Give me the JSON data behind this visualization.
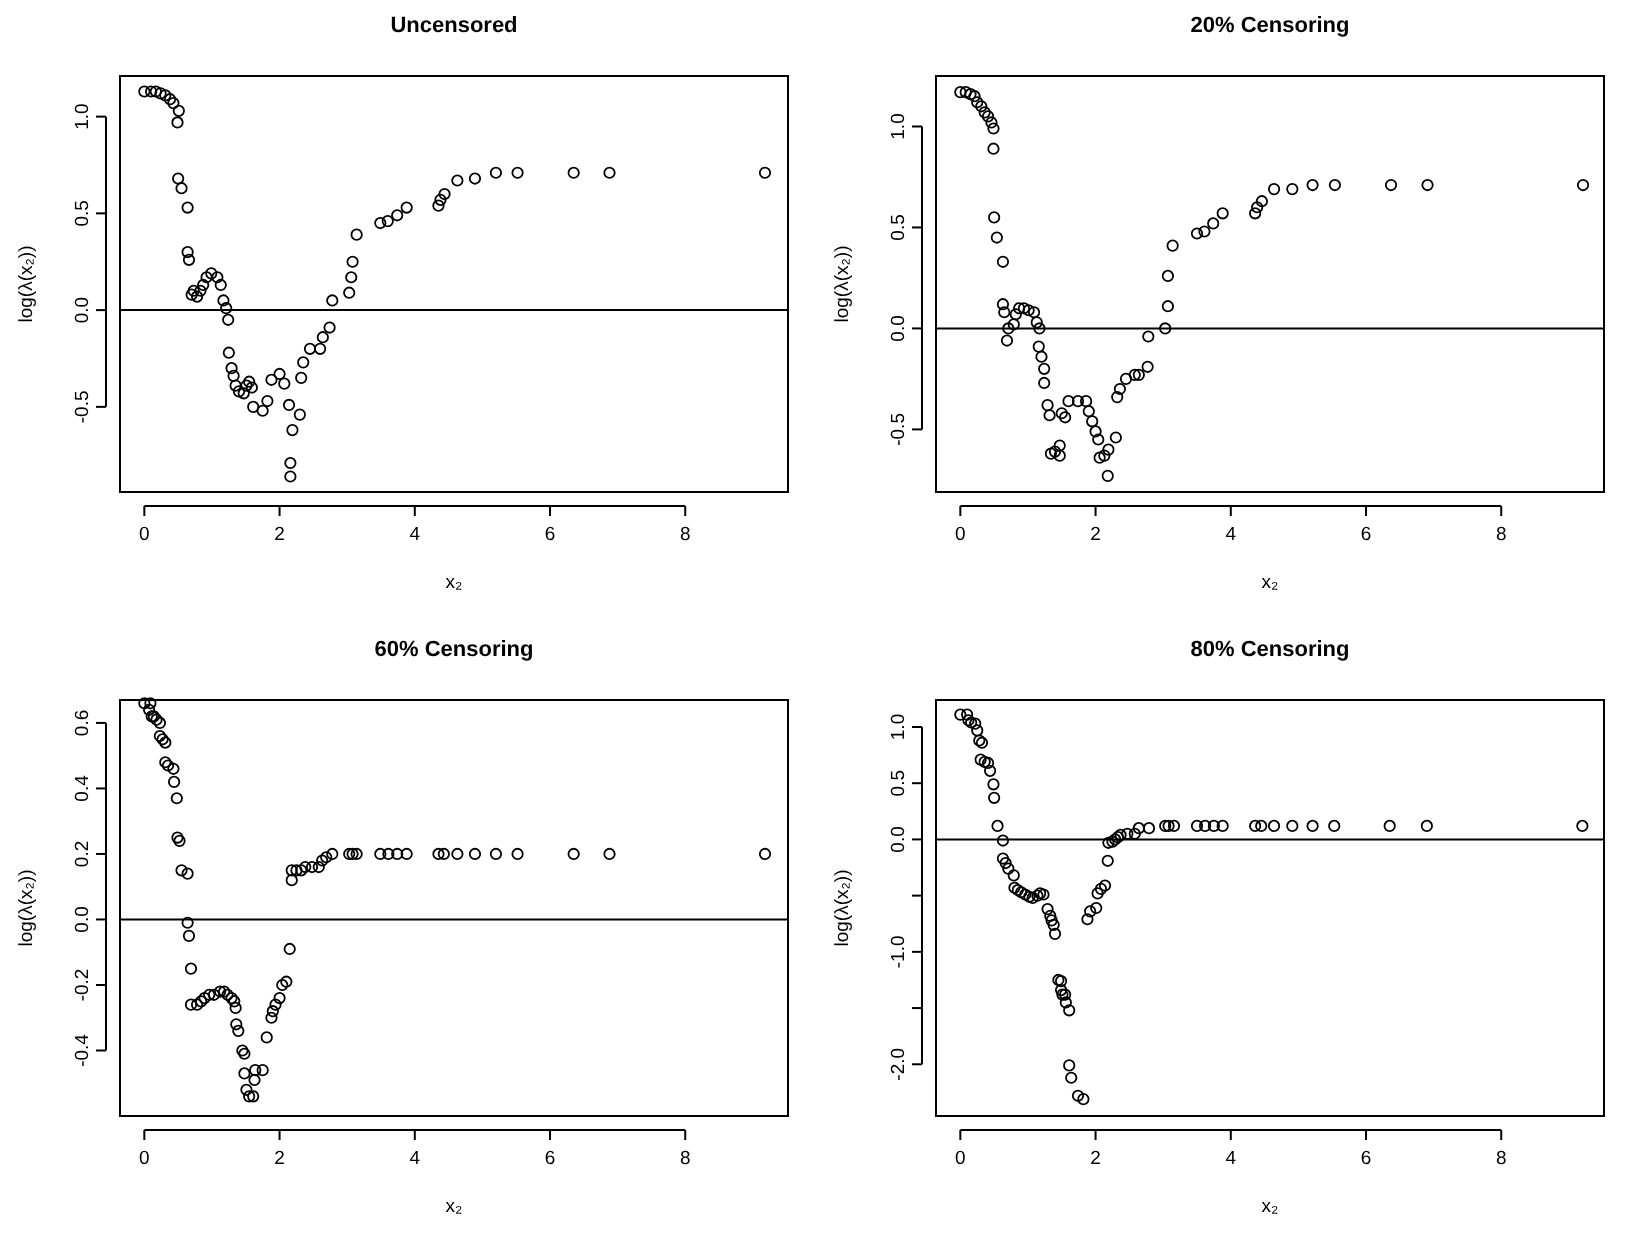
{
  "chart_data": [
    {
      "type": "scatter",
      "title": "Uncensored",
      "xlabel": "x₂",
      "ylabel": "log(λ(x₂))",
      "marker": "circle",
      "grid": false,
      "xlim": [
        -0.36,
        9.52
      ],
      "ylim": [
        -0.94,
        1.21
      ],
      "xticks": [
        0,
        2,
        4,
        6,
        8
      ],
      "yticks": [
        -0.5,
        {
          "value": 0,
          "label": "0.0"
        },
        0.5,
        {
          "value": 1,
          "label": "1.0"
        }
      ],
      "ref_lines": [
        {
          "axis": "y",
          "value": 0,
          "color": "#000000"
        }
      ],
      "series": [
        {
          "color": "#000000",
          "x": [
            0,
            0.1,
            0.17,
            0.24,
            0.31,
            0.38,
            0.43,
            0.51,
            0.49,
            0.5,
            0.55,
            0.64,
            0.64,
            0.66,
            0.7,
            0.73,
            0.78,
            0.83,
            0.87,
            0.92,
            0.99,
            1.08,
            1.13,
            1.17,
            1.21,
            1.24,
            1.25,
            1.29,
            1.32,
            1.35,
            1.4,
            1.47,
            1.51,
            1.55,
            1.59,
            1.61,
            1.75,
            1.82,
            1.88,
            2.0,
            2.07,
            2.14,
            2.19,
            2.16,
            2.16,
            2.3,
            2.32,
            2.35,
            2.45,
            2.6,
            2.64,
            2.74,
            2.78,
            3.03,
            3.06,
            3.08,
            3.14,
            3.49,
            3.6,
            3.74,
            3.88,
            4.35,
            4.38,
            4.44,
            4.63,
            4.89,
            5.2,
            5.52,
            6.35,
            6.88,
            9.18
          ],
          "values": [
            1.13,
            1.13,
            1.13,
            1.12,
            1.11,
            1.09,
            1.07,
            1.03,
            0.97,
            0.68,
            0.63,
            0.53,
            0.3,
            0.26,
            0.08,
            0.1,
            0.07,
            0.1,
            0.13,
            0.17,
            0.19,
            0.17,
            0.13,
            0.05,
            0.01,
            -0.05,
            -0.22,
            -0.3,
            -0.34,
            -0.39,
            -0.42,
            -0.43,
            -0.39,
            -0.37,
            -0.4,
            -0.5,
            -0.52,
            -0.47,
            -0.36,
            -0.33,
            -0.38,
            -0.49,
            -0.62,
            -0.79,
            -0.86,
            -0.54,
            -0.35,
            -0.27,
            -0.2,
            -0.2,
            -0.14,
            -0.09,
            0.05,
            0.09,
            0.17,
            0.25,
            0.39,
            0.45,
            0.46,
            0.49,
            0.53,
            0.54,
            0.57,
            0.6,
            0.67,
            0.68,
            0.71,
            0.71,
            0.71,
            0.71,
            0.71
          ]
        }
      ]
    },
    {
      "type": "scatter",
      "title": "20% Censoring",
      "xlabel": "x₂",
      "ylabel": "log(λ(x₂))",
      "marker": "circle",
      "grid": false,
      "xlim": [
        -0.36,
        9.52
      ],
      "ylim": [
        -0.81,
        1.25
      ],
      "xticks": [
        0,
        2,
        4,
        6,
        8
      ],
      "yticks": [
        -0.5,
        {
          "value": 0,
          "label": "0.0"
        },
        0.5,
        {
          "value": 1,
          "label": "1.0"
        }
      ],
      "ref_lines": [
        {
          "axis": "y",
          "value": 0,
          "color": "#000000"
        }
      ],
      "series": [
        {
          "color": "#000000",
          "x": [
            0,
            0.08,
            0.15,
            0.21,
            0.25,
            0.31,
            0.36,
            0.41,
            0.46,
            0.49,
            0.49,
            0.5,
            0.54,
            0.63,
            0.63,
            0.65,
            0.69,
            0.71,
            0.79,
            0.82,
            0.87,
            0.94,
            1.01,
            1.09,
            1.13,
            1.17,
            1.16,
            1.2,
            1.24,
            1.24,
            1.29,
            1.32,
            1.34,
            1.4,
            1.47,
            1.47,
            1.5,
            1.55,
            1.6,
            1.74,
            1.86,
            1.9,
            1.95,
            2.0,
            2.04,
            2.06,
            2.13,
            2.19,
            2.18,
            2.3,
            2.32,
            2.36,
            2.45,
            2.58,
            2.64,
            2.77,
            2.78,
            3.03,
            3.07,
            3.07,
            3.14,
            3.5,
            3.61,
            3.74,
            3.88,
            4.36,
            4.39,
            4.46,
            4.64,
            4.91,
            5.21,
            5.54,
            6.37,
            6.91,
            9.21
          ],
          "values": [
            1.17,
            1.17,
            1.16,
            1.15,
            1.12,
            1.1,
            1.07,
            1.05,
            1.02,
            0.99,
            0.89,
            0.55,
            0.45,
            0.33,
            0.12,
            0.08,
            -0.06,
            0,
            0.02,
            0.07,
            0.1,
            0.1,
            0.09,
            0.08,
            0.03,
            0,
            -0.09,
            -0.14,
            -0.2,
            -0.27,
            -0.38,
            -0.43,
            -0.62,
            -0.61,
            -0.58,
            -0.63,
            -0.42,
            -0.44,
            -0.36,
            -0.36,
            -0.36,
            -0.41,
            -0.46,
            -0.51,
            -0.55,
            -0.64,
            -0.63,
            -0.6,
            -0.73,
            -0.54,
            -0.34,
            -0.3,
            -0.25,
            -0.23,
            -0.23,
            -0.19,
            -0.04,
            0,
            0.11,
            0.26,
            0.41,
            0.47,
            0.48,
            0.52,
            0.57,
            0.57,
            0.6,
            0.63,
            0.69,
            0.69,
            0.71,
            0.71,
            0.71,
            0.71,
            0.71
          ]
        }
      ]
    },
    {
      "type": "scatter",
      "title": "60% Censoring",
      "xlabel": "x₂",
      "ylabel": "log(λ(x₂))",
      "marker": "circle",
      "grid": false,
      "xlim": [
        -0.36,
        9.52
      ],
      "ylim": [
        -0.6,
        0.67
      ],
      "xticks": [
        0,
        2,
        4,
        6,
        8
      ],
      "yticks": [
        -0.4,
        -0.2,
        {
          "value": 0,
          "label": "0.0"
        },
        0.2,
        0.4,
        0.6
      ],
      "ref_lines": [
        {
          "axis": "y",
          "value": 0,
          "color": "#000000"
        }
      ],
      "series": [
        {
          "color": "#000000",
          "x": [
            0,
            0.09,
            0.07,
            0.11,
            0.14,
            0.18,
            0.23,
            0.23,
            0.27,
            0.31,
            0.31,
            0.35,
            0.43,
            0.44,
            0.48,
            0.49,
            0.52,
            0.55,
            0.64,
            0.64,
            0.66,
            0.69,
            0.69,
            0.78,
            0.84,
            0.89,
            0.96,
            1.03,
            1.12,
            1.18,
            1.23,
            1.29,
            1.33,
            1.35,
            1.36,
            1.39,
            1.45,
            1.48,
            1.48,
            1.51,
            1.55,
            1.61,
            1.63,
            1.64,
            1.75,
            1.81,
            1.88,
            1.9,
            1.94,
            2.0,
            2.04,
            2.1,
            2.15,
            2.18,
            2.18,
            2.25,
            2.32,
            2.38,
            2.48,
            2.58,
            2.63,
            2.69,
            2.78,
            3.03,
            3.08,
            3.14,
            3.49,
            3.61,
            3.74,
            3.88,
            4.35,
            4.43,
            4.63,
            4.89,
            5.2,
            5.52,
            6.35,
            6.88,
            9.18
          ],
          "values": [
            0.66,
            0.66,
            0.64,
            0.62,
            0.62,
            0.61,
            0.6,
            0.56,
            0.55,
            0.54,
            0.48,
            0.47,
            0.46,
            0.42,
            0.37,
            0.25,
            0.24,
            0.15,
            0.14,
            -0.01,
            -0.05,
            -0.15,
            -0.26,
            -0.26,
            -0.25,
            -0.24,
            -0.23,
            -0.23,
            -0.22,
            -0.22,
            -0.23,
            -0.24,
            -0.25,
            -0.27,
            -0.32,
            -0.34,
            -0.4,
            -0.41,
            -0.47,
            -0.52,
            -0.54,
            -0.54,
            -0.49,
            -0.46,
            -0.46,
            -0.36,
            -0.3,
            -0.28,
            -0.26,
            -0.24,
            -0.2,
            -0.19,
            -0.09,
            0.12,
            0.15,
            0.15,
            0.15,
            0.16,
            0.16,
            0.16,
            0.18,
            0.19,
            0.2,
            0.2,
            0.2,
            0.2,
            0.2,
            0.2,
            0.2,
            0.2,
            0.2,
            0.2,
            0.2,
            0.2,
            0.2,
            0.2,
            0.2,
            0.2,
            0.2
          ]
        }
      ]
    },
    {
      "type": "scatter",
      "title": "80% Censoring",
      "xlabel": "x₂",
      "ylabel": "log(λ(x₂))",
      "marker": "circle",
      "grid": false,
      "xlim": [
        -0.36,
        9.52
      ],
      "ylim": [
        -2.46,
        1.24
      ],
      "xticks": [
        0,
        2,
        4,
        6,
        8
      ],
      "yticks": [
        {
          "value": -2,
          "label": "-2.0"
        },
        {
          "value": -1.5,
          "label": null
        },
        {
          "value": -1,
          "label": "-1.0"
        },
        {
          "value": -0.5,
          "label": null
        },
        {
          "value": 0,
          "label": "0.0"
        },
        0.5,
        {
          "value": 1,
          "label": "1.0"
        }
      ],
      "ref_lines": [
        {
          "axis": "y",
          "value": 0,
          "color": "#000000"
        }
      ],
      "series": [
        {
          "color": "#000000",
          "x": [
            0,
            0.1,
            0.12,
            0.16,
            0.22,
            0.25,
            0.28,
            0.32,
            0.3,
            0.36,
            0.41,
            0.44,
            0.49,
            0.5,
            0.55,
            0.63,
            0.63,
            0.67,
            0.71,
            0.79,
            0.8,
            0.85,
            0.9,
            0.96,
            1.02,
            1.07,
            1.14,
            1.18,
            1.23,
            1.29,
            1.33,
            1.35,
            1.38,
            1.4,
            1.45,
            1.49,
            1.49,
            1.51,
            1.55,
            1.56,
            1.61,
            1.61,
            1.64,
            1.74,
            1.82,
            1.88,
            1.92,
            2.01,
            2.03,
            2.08,
            2.14,
            2.18,
            2.19,
            2.25,
            2.29,
            2.33,
            2.37,
            2.47,
            2.58,
            2.64,
            2.79,
            3.03,
            3.08,
            3.16,
            3.5,
            3.62,
            3.75,
            3.88,
            4.36,
            4.45,
            4.64,
            4.91,
            5.21,
            5.53,
            6.35,
            6.9,
            9.2
          ],
          "values": [
            1.11,
            1.11,
            1.06,
            1.04,
            1.03,
            0.97,
            0.88,
            0.86,
            0.71,
            0.69,
            0.68,
            0.61,
            0.49,
            0.37,
            0.12,
            -0.01,
            -0.17,
            -0.21,
            -0.26,
            -0.32,
            -0.43,
            -0.45,
            -0.47,
            -0.49,
            -0.51,
            -0.52,
            -0.5,
            -0.48,
            -0.49,
            -0.62,
            -0.68,
            -0.72,
            -0.76,
            -0.84,
            -1.25,
            -1.26,
            -1.34,
            -1.38,
            -1.38,
            -1.45,
            -1.52,
            -2.01,
            -2.12,
            -2.28,
            -2.31,
            -0.71,
            -0.64,
            -0.61,
            -0.48,
            -0.44,
            -0.41,
            -0.19,
            -0.03,
            -0.02,
            0,
            0.02,
            0.04,
            0.05,
            0.05,
            0.1,
            0.1,
            0.12,
            0.12,
            0.12,
            0.12,
            0.12,
            0.12,
            0.12,
            0.12,
            0.12,
            0.12,
            0.12,
            0.12,
            0.12,
            0.12,
            0.12,
            0.12
          ]
        }
      ]
    }
  ]
}
